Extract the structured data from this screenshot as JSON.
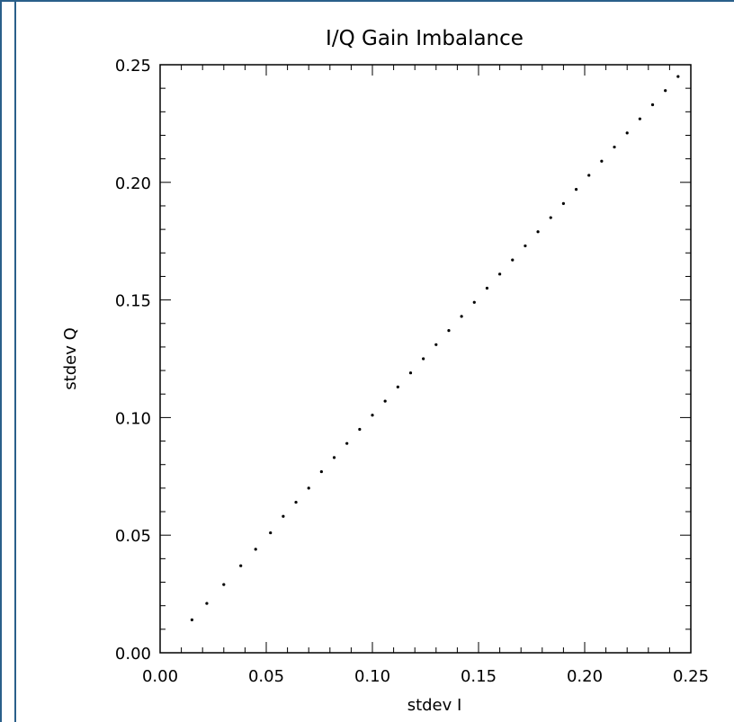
{
  "colors": {
    "frame_border": "#2a5f8a",
    "plot_ink": "#000000",
    "background": "#ffffff"
  },
  "chart_data": {
    "type": "scatter",
    "title": "I/Q Gain Imbalance",
    "xlabel": "stdev I",
    "ylabel": "stdev Q",
    "xlim": [
      0.0,
      0.25
    ],
    "ylim": [
      0.0,
      0.25
    ],
    "x_ticks": [
      "0.00",
      "0.05",
      "0.10",
      "0.15",
      "0.20",
      "0.25"
    ],
    "y_ticks": [
      "0.00",
      "0.05",
      "0.10",
      "0.15",
      "0.20",
      "0.25"
    ],
    "grid": false,
    "series": [
      {
        "x": [
          0.015,
          0.022,
          0.03,
          0.038,
          0.045,
          0.052,
          0.058,
          0.064,
          0.07,
          0.076,
          0.082,
          0.088,
          0.094,
          0.1,
          0.106,
          0.112,
          0.118,
          0.124,
          0.13,
          0.136,
          0.142,
          0.148,
          0.154,
          0.16,
          0.166,
          0.172,
          0.178,
          0.184,
          0.19,
          0.196,
          0.202,
          0.208,
          0.214,
          0.22,
          0.226,
          0.232,
          0.238,
          0.244
        ],
        "y": [
          0.014,
          0.021,
          0.029,
          0.037,
          0.044,
          0.051,
          0.058,
          0.064,
          0.07,
          0.077,
          0.083,
          0.089,
          0.095,
          0.101,
          0.107,
          0.113,
          0.119,
          0.125,
          0.131,
          0.137,
          0.143,
          0.149,
          0.155,
          0.161,
          0.167,
          0.173,
          0.179,
          0.185,
          0.191,
          0.197,
          0.203,
          0.209,
          0.215,
          0.221,
          0.227,
          0.233,
          0.239,
          0.245
        ]
      }
    ]
  }
}
